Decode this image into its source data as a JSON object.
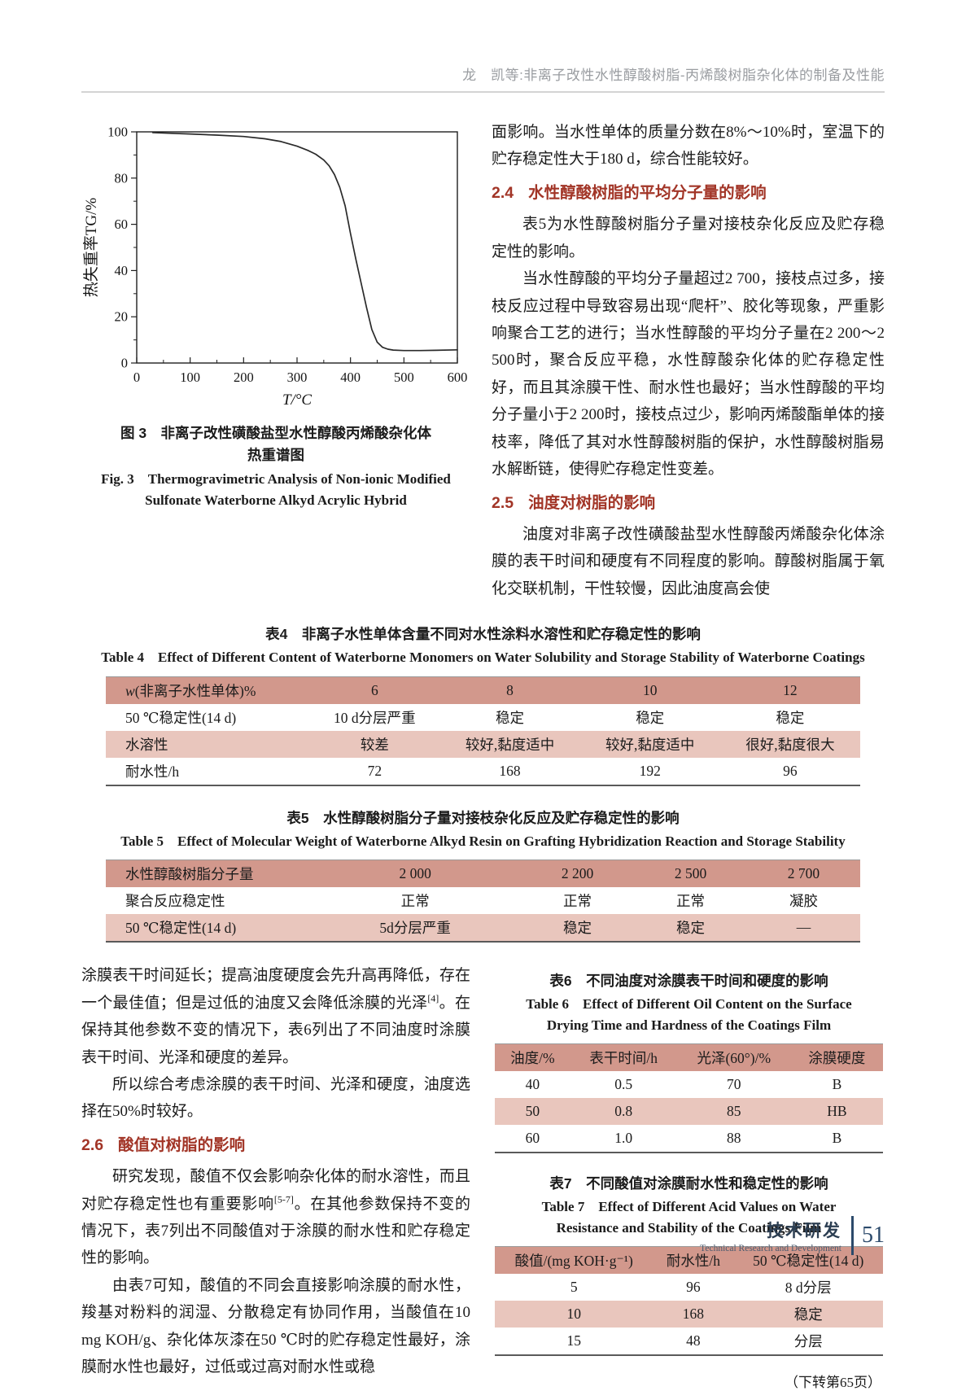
{
  "colors": {
    "accent_heading": "#a23527",
    "table_header_bg": "#d2988c",
    "table_alt_bg": "#e9c6bd",
    "footer_navy": "#2c4a6b",
    "running_title_gray": "#9a9da1"
  },
  "header": {
    "running_title": "龙　凯等:非离子改性水性醇酸树脂-丙烯酸树脂杂化体的制备及性能"
  },
  "chart_data": {
    "type": "line",
    "title": "",
    "xlabel": "T/°C",
    "ylabel": "热失重率TG/%",
    "xlim": [
      0,
      600
    ],
    "ylim": [
      0,
      100
    ],
    "xticks": [
      0,
      100,
      200,
      300,
      400,
      500,
      600
    ],
    "yticks": [
      0,
      20,
      40,
      60,
      80,
      100
    ],
    "grid": false,
    "legend": false,
    "series": [
      {
        "name": "TG",
        "x": [
          30,
          60,
          100,
          150,
          200,
          240,
          270,
          300,
          320,
          335,
          350,
          360,
          370,
          380,
          390,
          400,
          410,
          420,
          430,
          440,
          450,
          460,
          470,
          480,
          500,
          530,
          560,
          600
        ],
        "y": [
          99.7,
          99.4,
          99.1,
          98.6,
          98.0,
          97.0,
          95.8,
          93.8,
          92.0,
          90.3,
          87.8,
          85.3,
          81.5,
          76.0,
          68.0,
          56.0,
          45.0,
          34.5,
          24.0,
          14.5,
          9.0,
          6.8,
          6.0,
          5.6,
          5.4,
          5.4,
          5.5,
          5.7
        ]
      }
    ]
  },
  "figure3": {
    "caption_zh_1": "图 3　非离子改性磺酸盐型水性醇酸丙烯酸杂化体",
    "caption_zh_2": "热重谱图",
    "caption_en_1": "Fig. 3　Thermogravimetric Analysis of Non-ionic Modified",
    "caption_en_2": "Sulfonate Waterborne Alkyd Acrylic Hybrid"
  },
  "right_top": {
    "p1": "面影响。当水性单体的质量分数在8%～10%时，室温下的贮存稳定性大于180 d，综合性能较好。",
    "h24_num": "2.4",
    "h24_title": "水性醇酸树脂的平均分子量的影响",
    "p2": "表5为水性醇酸树脂分子量对接枝杂化反应及贮存稳定性的影响。",
    "p3": "当水性醇酸的平均分子量超过2 700，接枝点过多，接枝反应过程中导致容易出现“爬杆”、胶化等现象，严重影响聚合工艺的进行；当水性醇酸的平均分子量在2 200～2 500时，聚合反应平稳，水性醇酸杂化体的贮存稳定性好，而且其涂膜干性、耐水性也最好；当水性醇酸的平均分子量小于2 200时，接枝点过少，影响丙烯酸酯单体的接枝率，降低了其对水性醇酸树脂的保护，水性醇酸树脂易水解断链，使得贮存稳定性变差。",
    "h25_num": "2.5",
    "h25_title": "油度对树脂的影响",
    "p4": "油度对非离子改性磺酸盐型水性醇酸丙烯酸杂化体涂膜的表干时间和硬度有不同程度的影响。醇酸树脂属于氧化交联机制，干性较慢，因此油度高会使"
  },
  "table4": {
    "caption_zh": "表4　非离子水性单体含量不同对水性涂料水溶性和贮存稳定性的影响",
    "caption_en": "Table 4　Effect of Different Content of Waterborne Monomers on Water Solubility and Storage Stability of Waterborne Coatings",
    "header_italic": "w",
    "header_rest": "(非离子水性单体)%",
    "header_vals": [
      "6",
      "8",
      "10",
      "12"
    ],
    "rows": [
      [
        "50 ℃稳定性(14 d)",
        "10 d分层严重",
        "稳定",
        "稳定",
        "稳定"
      ],
      [
        "水溶性",
        "较差",
        "较好,黏度适中",
        "较好,黏度适中",
        "很好,黏度很大"
      ],
      [
        "耐水性/h",
        "72",
        "168",
        "192",
        "96"
      ]
    ]
  },
  "table5": {
    "caption_zh": "表5　水性醇酸树脂分子量对接枝杂化反应及贮存稳定性的影响",
    "caption_en": "Table 5　Effect of Molecular Weight of Waterborne Alkyd Resin on Grafting Hybridization Reaction and Storage Stability",
    "header": [
      "水性醇酸树脂分子量",
      "2 000",
      "2 200",
      "2 500",
      "2 700"
    ],
    "rows": [
      [
        "聚合反应稳定性",
        "正常",
        "正常",
        "正常",
        "凝胶"
      ],
      [
        "50 ℃稳定性(14 d)",
        "5d分层严重",
        "稳定",
        "稳定",
        "—"
      ]
    ]
  },
  "left_bottom": {
    "p1a": "涂膜表干时间延长；提高油度硬度会先升高再降低，存在一个最佳值；但是过低的油度又会降低涂膜的光泽",
    "p1sup": "[4]",
    "p1b": "。在保持其他参数不变的情况下，表6列出了不同油度时涂膜表干时间、光泽和硬度的差异。",
    "p2": "所以综合考虑涂膜的表干时间、光泽和硬度，油度选择在50%时较好。",
    "h26_num": "2.6",
    "h26_title": "酸值对树脂的影响",
    "p3a": "研究发现，酸值不仅会影响杂化体的耐水溶性，而且对贮存稳定性也有重要影响",
    "p3sup": "[5-7]",
    "p3b": "。在其他参数保持不变的情况下，表7列出不同酸值对于涂膜的耐水性和贮存稳定性的影响。",
    "p4": "由表7可知，酸值的不同会直接影响涂膜的耐水性，羧基对粉料的润湿、分散稳定有协同作用，当酸值在10 mg KOH/g、杂化体灰漆在50 ℃时的贮存稳定性最好，涂膜耐水性也最好，过低或过高对耐水性或稳"
  },
  "table6": {
    "caption_zh": "表6　不同油度对涂膜表干时间和硬度的影响",
    "caption_en_1": "Table 6　Effect of Different Oil Content on the Surface",
    "caption_en_2": "Drying Time and Hardness of the Coatings Film",
    "header": [
      "油度/%",
      "表干时间/h",
      "光泽(60°)/%",
      "涂膜硬度"
    ],
    "rows": [
      [
        "40",
        "0.5",
        "70",
        "B"
      ],
      [
        "50",
        "0.8",
        "85",
        "HB"
      ],
      [
        "60",
        "1.0",
        "88",
        "B"
      ]
    ]
  },
  "table7": {
    "caption_zh": "表7　不同酸值对涂膜耐水性和稳定性的影响",
    "caption_en_1": "Table 7　Effect of Different Acid Values on Water",
    "caption_en_2": "Resistance and Stability of the Coatings Film",
    "header": [
      "酸值/(mg KOH·g⁻¹)",
      "耐水性/h",
      "50 ℃稳定性(14 d)"
    ],
    "rows": [
      [
        "5",
        "96",
        "8 d分层"
      ],
      [
        "10",
        "168",
        "稳定"
      ],
      [
        "15",
        "48",
        "分层"
      ]
    ]
  },
  "continuation_note": "（下转第65页）",
  "footer": {
    "section_zh": "技术研发",
    "section_en": "Technical Research and Development",
    "page_number": "51"
  }
}
